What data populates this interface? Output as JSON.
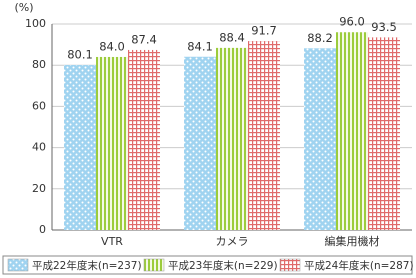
{
  "chart_data": {
    "type": "bar",
    "y_label": "(%)",
    "categories": [
      "VTR",
      "カメラ",
      "編集用機材"
    ],
    "series": [
      {
        "name": "平成22年度末(n=237)",
        "color": "#9fd3f0",
        "pattern": "dots",
        "values": [
          80.1,
          84.1,
          88.2
        ],
        "value_labels": [
          "80.1",
          "84.1",
          "88.2"
        ]
      },
      {
        "name": "平成23年度末(n=229)",
        "color": "#9ccc3c",
        "pattern": "stripes",
        "values": [
          84.0,
          88.4,
          96.0
        ],
        "value_labels": [
          "84.0",
          "88.4",
          "96.0"
        ]
      },
      {
        "name": "平成24年度末(n=287)",
        "color": "#e06a6a",
        "pattern": "check",
        "values": [
          87.4,
          91.7,
          93.5
        ],
        "value_labels": [
          "87.4",
          "91.7",
          "93.5"
        ]
      }
    ],
    "ylim": [
      0,
      100
    ],
    "yticks": [
      0,
      20,
      40,
      60,
      80,
      100
    ],
    "grid": true,
    "legend": "bottom"
  }
}
